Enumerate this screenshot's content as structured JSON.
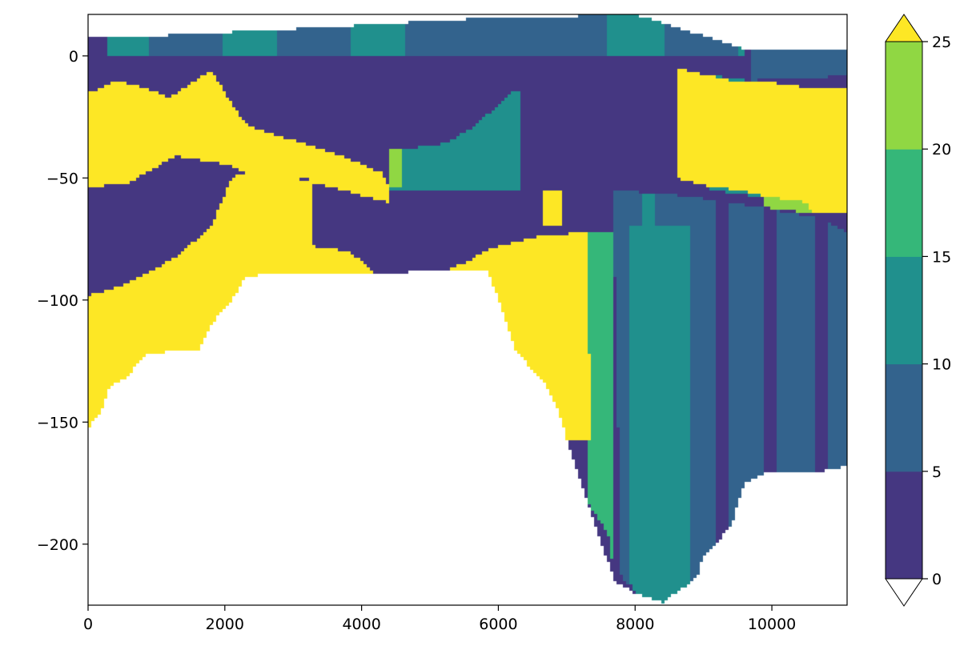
{
  "chart_data": {
    "type": "heatmap",
    "title": "",
    "xlabel": "",
    "ylabel": "",
    "xlim": [
      0,
      11100
    ],
    "ylim": [
      -225,
      17
    ],
    "x_ticks": [
      0,
      2000,
      4000,
      6000,
      8000,
      10000
    ],
    "x_tick_labels": [
      "0",
      "2000",
      "4000",
      "6000",
      "8000",
      "10000"
    ],
    "y_ticks": [
      0,
      -50,
      -100,
      -150,
      -200
    ],
    "y_tick_labels": [
      "0",
      "−50",
      "−100",
      "−150",
      "−200"
    ],
    "grid": false,
    "colorbar": {
      "levels": [
        0,
        5,
        10,
        15,
        20,
        25
      ],
      "tick_labels": [
        "0",
        "5",
        "10",
        "15",
        "20",
        "25"
      ],
      "colors": [
        "#453781",
        "#33638d",
        "#20908d",
        "#35b779",
        "#90d743"
      ],
      "under_color": "#ffffff",
      "over_color": "#fde725",
      "extend": "both"
    },
    "polygons": [
      {
        "name": "upper-yellow-band",
        "level": "over",
        "color": "#fde725",
        "points": [
          [
            0,
            -15
          ],
          [
            300,
            -12
          ],
          [
            400,
            -10
          ],
          [
            800,
            -13
          ],
          [
            1200,
            -17
          ],
          [
            1300,
            -15
          ],
          [
            1800,
            -6
          ],
          [
            2000,
            -15
          ],
          [
            2300,
            -28
          ],
          [
            2800,
            -33
          ],
          [
            3300,
            -37
          ],
          [
            3800,
            -42
          ],
          [
            4300,
            -48
          ],
          [
            4400,
            -53
          ],
          [
            4400,
            -60
          ],
          [
            3300,
            -52
          ],
          [
            3200,
            -50
          ],
          [
            3000,
            -50
          ],
          [
            2300,
            -48
          ],
          [
            2100,
            -45
          ],
          [
            1500,
            -42
          ],
          [
            1300,
            -41
          ],
          [
            900,
            -47
          ],
          [
            600,
            -52
          ],
          [
            300,
            -53
          ],
          [
            0,
            -54
          ]
        ]
      },
      {
        "name": "lower-yellow-region",
        "level": "over",
        "color": "#fde725",
        "points": [
          [
            0,
            -98
          ],
          [
            300,
            -96
          ],
          [
            600,
            -93
          ],
          [
            1000,
            -87
          ],
          [
            1300,
            -82
          ],
          [
            1800,
            -70
          ],
          [
            2100,
            -50
          ],
          [
            2300,
            -48
          ],
          [
            3000,
            -50
          ],
          [
            3300,
            -52
          ],
          [
            3300,
            -78
          ],
          [
            3800,
            -80
          ],
          [
            4000,
            -84
          ],
          [
            4400,
            -94
          ],
          [
            4500,
            -92
          ],
          [
            5200,
            -88
          ],
          [
            5500,
            -85
          ],
          [
            5800,
            -80
          ],
          [
            6000,
            -78
          ],
          [
            6300,
            -76
          ],
          [
            6600,
            -74
          ],
          [
            7000,
            -73
          ],
          [
            7300,
            -72
          ],
          [
            7350,
            -157
          ],
          [
            7000,
            -157
          ],
          [
            6900,
            -147
          ],
          [
            6700,
            -135
          ],
          [
            6450,
            -127
          ],
          [
            6250,
            -120
          ],
          [
            6100,
            -108
          ],
          [
            5850,
            -88
          ],
          [
            5400,
            -88
          ],
          [
            4200,
            -89
          ],
          [
            3500,
            -89
          ],
          [
            2600,
            -89
          ],
          [
            2300,
            -91
          ],
          [
            2100,
            -100
          ],
          [
            1800,
            -110
          ],
          [
            1600,
            -121
          ],
          [
            1200,
            -121
          ],
          [
            800,
            -123
          ],
          [
            600,
            -131
          ],
          [
            300,
            -136
          ],
          [
            200,
            -145
          ],
          [
            0,
            -153
          ]
        ]
      },
      {
        "name": "right-yellow-upper",
        "level": "over",
        "color": "#fde725",
        "points": [
          [
            8600,
            -5
          ],
          [
            9400,
            -10
          ],
          [
            10000,
            -11
          ],
          [
            10500,
            -13
          ],
          [
            11100,
            -13
          ],
          [
            11100,
            -64
          ],
          [
            10600,
            -64
          ],
          [
            10500,
            -60
          ],
          [
            10000,
            -58
          ],
          [
            9500,
            -55
          ],
          [
            9000,
            -53
          ],
          [
            8600,
            -50
          ]
        ]
      },
      {
        "name": "yellow-block-6700",
        "level": "over",
        "color": "#fde725",
        "points": [
          [
            6650,
            -55
          ],
          [
            6950,
            -55
          ],
          [
            6950,
            -69
          ],
          [
            6650,
            -69
          ]
        ]
      },
      {
        "name": "teal-mid-strip",
        "level": "10-15",
        "color": "#20908d",
        "points": [
          [
            4400,
            -38
          ],
          [
            4700,
            -38
          ],
          [
            5200,
            -36
          ],
          [
            5600,
            -30
          ],
          [
            6000,
            -20
          ],
          [
            6200,
            -15
          ],
          [
            6300,
            -15
          ],
          [
            6300,
            -55
          ],
          [
            5500,
            -55
          ],
          [
            4400,
            -55
          ]
        ]
      },
      {
        "name": "green-mid-strip",
        "level": "20-25",
        "color": "#90d743",
        "points": [
          [
            4400,
            -38
          ],
          [
            4600,
            -38
          ],
          [
            4600,
            -54
          ],
          [
            4400,
            -54
          ]
        ]
      },
      {
        "name": "lime-right-block",
        "level": "20-25",
        "color": "#90d743",
        "points": [
          [
            9900,
            -14
          ],
          [
            10700,
            -15
          ],
          [
            10700,
            -65
          ],
          [
            9900,
            -62
          ]
        ]
      },
      {
        "name": "teal-right-strip",
        "level": "10-15",
        "color": "#20908d",
        "points": [
          [
            9100,
            -8
          ],
          [
            9900,
            -11
          ],
          [
            9900,
            -58
          ],
          [
            9100,
            -55
          ]
        ]
      },
      {
        "name": "top-blue-right",
        "level": "5-10",
        "color": "#33638d",
        "points": [
          [
            9700,
            3
          ],
          [
            11100,
            2
          ],
          [
            11100,
            -8
          ],
          [
            10600,
            -9
          ],
          [
            9700,
            -10
          ]
        ]
      },
      {
        "name": "lower-right-blue",
        "level": "5-10",
        "color": "#33638d",
        "points": [
          [
            7700,
            -55
          ],
          [
            8600,
            -57
          ],
          [
            9400,
            -60
          ],
          [
            10000,
            -63
          ],
          [
            10600,
            -66
          ],
          [
            11100,
            -72
          ],
          [
            11100,
            -168
          ],
          [
            10600,
            -171
          ],
          [
            10000,
            -170
          ],
          [
            9600,
            -175
          ],
          [
            9400,
            -193
          ],
          [
            9000,
            -205
          ],
          [
            8900,
            -214
          ],
          [
            8400,
            -224
          ],
          [
            8200,
            -220
          ],
          [
            7800,
            -215
          ],
          [
            7700,
            -85
          ]
        ]
      },
      {
        "name": "lower-right-teal",
        "level": "10-15",
        "color": "#20908d",
        "points": [
          [
            7900,
            -70
          ],
          [
            8800,
            -70
          ],
          [
            8800,
            -224
          ],
          [
            8400,
            -224
          ],
          [
            8000,
            -220
          ],
          [
            7900,
            -215
          ]
        ]
      },
      {
        "name": "lower-right-green",
        "level": "15-20",
        "color": "#35b779",
        "points": [
          [
            7300,
            -72
          ],
          [
            7700,
            -72
          ],
          [
            7700,
            -215
          ],
          [
            7600,
            -195
          ],
          [
            7300,
            -183
          ]
        ]
      }
    ]
  }
}
